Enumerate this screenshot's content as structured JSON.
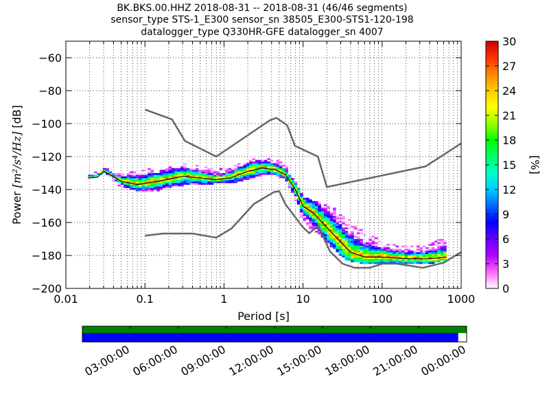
{
  "title": {
    "line1": "BK.BKS.00.HHZ   2018-08-31 -- 2018-08-31  (46/46 segments)",
    "line2": "sensor_type STS-1_E300 sensor_sn 38505_E300-STS1-120-198",
    "line3": "datalogger_type Q330HR-GFE datalogger_sn 4007"
  },
  "chart_data": {
    "type": "heatmap",
    "xlabel": "Period [s]",
    "ylabel_prefix": "Power ",
    "ylabel_units": "[m²/s⁴/Hz]",
    "ylabel_suffix": " [dB]",
    "x_scale": "log",
    "xlim": [
      0.01,
      1000
    ],
    "ylim": [
      -200,
      -50
    ],
    "x_ticks": [
      0.01,
      0.1,
      1,
      10,
      100,
      1000
    ],
    "x_tick_labels": [
      "0.01",
      "0.1",
      "1",
      "10",
      "100",
      "1000"
    ],
    "y_ticks": [
      -200,
      -180,
      -160,
      -140,
      -120,
      -100,
      -80,
      -60
    ],
    "y_tick_labels": [
      "−200",
      "−180",
      "−160",
      "−140",
      "−120",
      "−100",
      "−80",
      "−60"
    ],
    "grid": "dotted",
    "colorbar": {
      "label": "[%]",
      "range": [
        0,
        30
      ],
      "ticks": [
        0,
        3,
        6,
        9,
        12,
        15,
        18,
        21,
        24,
        27,
        30
      ],
      "tick_labels": [
        "0",
        "3",
        "6",
        "9",
        "12",
        "15",
        "18",
        "21",
        "24",
        "27",
        "30"
      ],
      "colormap": [
        "#ffffff",
        "#ff66ff",
        "#b300ff",
        "#6600ff",
        "#0000ff",
        "#0066ff",
        "#00ccff",
        "#00ffcc",
        "#00ff66",
        "#00ff00",
        "#99ff00",
        "#ffff00",
        "#ffcc00",
        "#ff8800",
        "#ff3300",
        "#cc0000"
      ]
    },
    "noise_models": [
      {
        "name": "high-noise-model",
        "color": "#666666",
        "points": [
          [
            0.1,
            -91.5
          ],
          [
            0.22,
            -97.4
          ],
          [
            0.32,
            -110.5
          ],
          [
            0.8,
            -120
          ],
          [
            3.8,
            -98
          ],
          [
            4.6,
            -96.5
          ],
          [
            6.3,
            -101
          ],
          [
            7.9,
            -113.5
          ],
          [
            15.4,
            -120
          ],
          [
            20,
            -138.5
          ],
          [
            354,
            -126
          ],
          [
            1000,
            -112
          ]
        ]
      },
      {
        "name": "low-noise-model",
        "color": "#666666",
        "points": [
          [
            0.1,
            -168
          ],
          [
            0.17,
            -166.7
          ],
          [
            0.4,
            -166.7
          ],
          [
            0.8,
            -169.2
          ],
          [
            1.24,
            -163.7
          ],
          [
            2.4,
            -148.7
          ],
          [
            4.3,
            -141.5
          ],
          [
            5,
            -141.1
          ],
          [
            6,
            -149
          ],
          [
            10,
            -163
          ],
          [
            12,
            -166.5
          ],
          [
            15.6,
            -162
          ],
          [
            21.9,
            -177.5
          ],
          [
            31.6,
            -185
          ],
          [
            45,
            -187.5
          ],
          [
            70,
            -187.5
          ],
          [
            101,
            -185
          ],
          [
            154,
            -185
          ],
          [
            328,
            -187.5
          ],
          [
            600,
            -184.4
          ],
          [
            1000,
            -178
          ]
        ]
      }
    ],
    "psd_median": {
      "color": "#000000",
      "points": [
        [
          0.019,
          -133
        ],
        [
          0.025,
          -132.5
        ],
        [
          0.03,
          -129
        ],
        [
          0.035,
          -130.5
        ],
        [
          0.05,
          -135
        ],
        [
          0.08,
          -137
        ],
        [
          0.15,
          -135
        ],
        [
          0.3,
          -132
        ],
        [
          0.5,
          -133
        ],
        [
          0.8,
          -134
        ],
        [
          1.2,
          -133
        ],
        [
          2,
          -129
        ],
        [
          3,
          -127
        ],
        [
          4.5,
          -128
        ],
        [
          6,
          -131
        ],
        [
          8,
          -140
        ],
        [
          10,
          -150
        ],
        [
          14,
          -155
        ],
        [
          20,
          -163
        ],
        [
          30,
          -172
        ],
        [
          40,
          -178
        ],
        [
          60,
          -181
        ],
        [
          100,
          -181
        ],
        [
          200,
          -182
        ],
        [
          400,
          -182
        ],
        [
          650,
          -181
        ]
      ]
    },
    "psd_spread": {
      "points": [
        [
          0.019,
          -133,
          -133
        ],
        [
          0.03,
          -130,
          -128
        ],
        [
          0.05,
          -138,
          -132
        ],
        [
          0.08,
          -141,
          -130
        ],
        [
          0.15,
          -140,
          -128
        ],
        [
          0.3,
          -137,
          -125
        ],
        [
          0.5,
          -137,
          -127
        ],
        [
          0.8,
          -136,
          -129
        ],
        [
          1.2,
          -136,
          -128
        ],
        [
          2,
          -134,
          -123
        ],
        [
          3,
          -131,
          -121
        ],
        [
          4.5,
          -131,
          -123
        ],
        [
          6,
          -133,
          -126
        ],
        [
          8,
          -146,
          -136
        ],
        [
          10,
          -160,
          -146
        ],
        [
          13,
          -164,
          -148
        ],
        [
          18,
          -170,
          -150
        ],
        [
          25,
          -176,
          -152
        ],
        [
          35,
          -182,
          -158
        ],
        [
          50,
          -184,
          -164
        ],
        [
          80,
          -185,
          -170
        ],
        [
          120,
          -185,
          -174
        ],
        [
          200,
          -185,
          -176
        ],
        [
          400,
          -185,
          -175
        ],
        [
          650,
          -182,
          -168
        ]
      ]
    },
    "timeline": {
      "ticks": [
        "03:00:00",
        "06:00:00",
        "09:00:00",
        "12:00:00",
        "15:00:00",
        "18:00:00",
        "21:00:00",
        "00:00:00"
      ],
      "data_bar_color": "#008000",
      "psd_bar_color": "#0000ff",
      "psd_coverage_fraction": 0.978
    }
  }
}
